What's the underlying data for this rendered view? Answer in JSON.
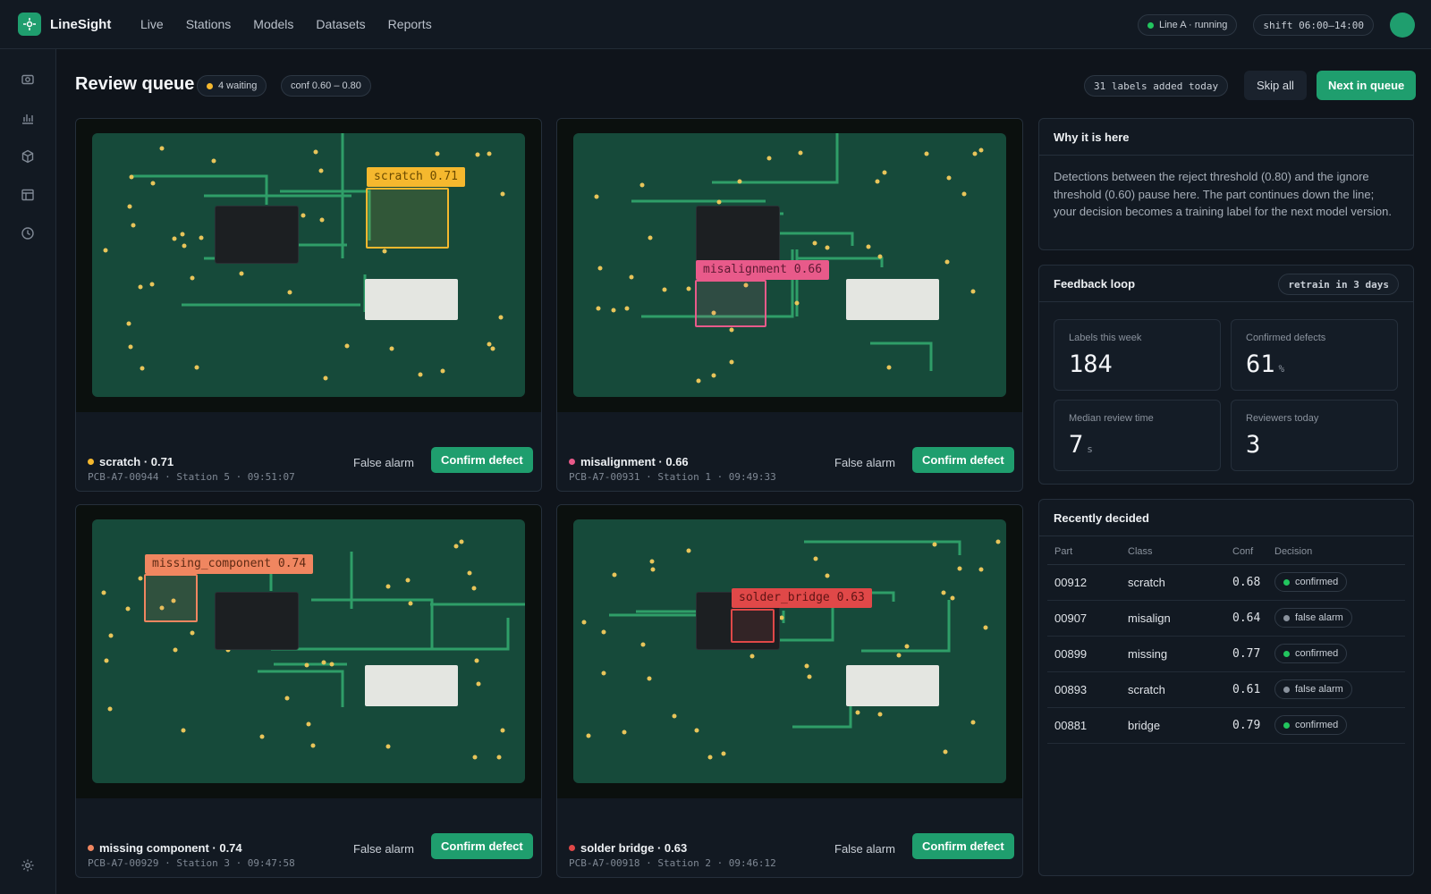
{
  "app": {
    "name": "LineSight"
  },
  "nav": [
    "Live",
    "Stations",
    "Models",
    "Datasets",
    "Reports"
  ],
  "status": {
    "line": "Line A · running",
    "line_color": "#22c55e",
    "shift": "shift 06:00–14:00"
  },
  "header": {
    "title": "Review queue",
    "waiting": "4 waiting",
    "conf_range": "conf 0.60 – 0.80",
    "labels_today": "31 labels added today",
    "skip_all": "Skip all",
    "next": "Next in queue"
  },
  "cards": [
    {
      "label": "scratch 0.71",
      "title": "scratch · 0.71",
      "meta": "PCB-A7-00944 · Station 5 · 09:51:07",
      "color": "#f5b82e",
      "false_alarm": "False alarm",
      "confirm": "Confirm defect"
    },
    {
      "label": "misalignment 0.66",
      "title": "misalignment · 0.66",
      "meta": "PCB-A7-00931 · Station 1 · 09:49:33",
      "color": "#e85a8a",
      "false_alarm": "False alarm",
      "confirm": "Confirm defect"
    },
    {
      "label": "missing_component 0.74",
      "title": "missing component · 0.74",
      "meta": "PCB-A7-00929 · Station 3 · 09:47:58",
      "color": "#f08660",
      "false_alarm": "False alarm",
      "confirm": "Confirm defect"
    },
    {
      "label": "solder_bridge 0.63",
      "title": "solder bridge · 0.63",
      "meta": "PCB-A7-00918 · Station 2 · 09:46:12",
      "color": "#e04848",
      "false_alarm": "False alarm",
      "confirm": "Confirm defect"
    }
  ],
  "why": {
    "title": "Why it is here",
    "body": "Detections between the reject threshold (0.80) and the ignore threshold (0.60) pause here. The part continues down the line; your decision becomes a training label for the next model version."
  },
  "feedback": {
    "title": "Feedback loop",
    "retrain": "retrain in 3 days",
    "stats": [
      {
        "label": "Labels this week",
        "value": "184",
        "unit": ""
      },
      {
        "label": "Confirmed defects",
        "value": "61",
        "unit": "%"
      },
      {
        "label": "Median review time",
        "value": "7",
        "unit": "s"
      },
      {
        "label": "Reviewers today",
        "value": "3",
        "unit": ""
      }
    ]
  },
  "recent": {
    "title": "Recently decided",
    "columns": [
      "Part",
      "Class",
      "Conf",
      "Decision"
    ],
    "rows": [
      {
        "part": "00912",
        "class": "scratch",
        "conf": "0.68",
        "decision": "confirmed",
        "color": "#22c55e"
      },
      {
        "part": "00907",
        "class": "misalign",
        "conf": "0.64",
        "decision": "false alarm",
        "color": "#8a929d"
      },
      {
        "part": "00899",
        "class": "missing",
        "conf": "0.77",
        "decision": "confirmed",
        "color": "#22c55e"
      },
      {
        "part": "00893",
        "class": "scratch",
        "conf": "0.61",
        "decision": "false alarm",
        "color": "#8a929d"
      },
      {
        "part": "00881",
        "class": "bridge",
        "conf": "0.79",
        "decision": "confirmed",
        "color": "#22c55e"
      }
    ]
  },
  "colors": {
    "accent": "#1f9e6e",
    "waiting_dot": "#f5b82e"
  },
  "icons": [
    "camera-icon",
    "chart-icon",
    "cube-icon",
    "layout-icon",
    "clock-icon",
    "settings-icon"
  ]
}
